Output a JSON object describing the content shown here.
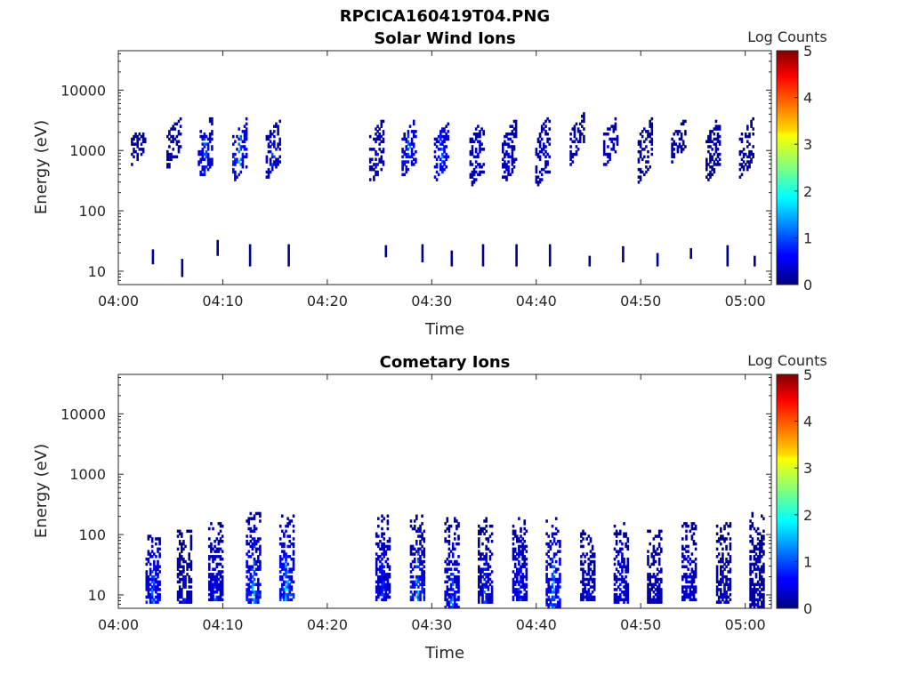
{
  "figure_title": "RPCICA160419T04.PNG",
  "chart_data": [
    {
      "type": "heatmap",
      "title": "Solar Wind Ions",
      "xlabel": "Time",
      "ylabel": "Energy (eV)",
      "x_ticks": [
        "04:00",
        "04:10",
        "04:20",
        "04:30",
        "04:40",
        "04:50",
        "05:00"
      ],
      "x_range_minutes": [
        0,
        62.5
      ],
      "y_scale": "log",
      "y_ticks": [
        "10",
        "100",
        "1000",
        "10000"
      ],
      "y_range": [
        6,
        45000
      ],
      "colorbar": {
        "label": "Log Counts",
        "ticks": [
          "0",
          "1",
          "2",
          "3",
          "4",
          "5"
        ],
        "range": [
          0,
          5
        ],
        "colormap": "jet"
      },
      "clusters": [
        {
          "t": 1.8,
          "e_min": 700,
          "e_max": 2200,
          "c": 0.4
        },
        {
          "t": 5.2,
          "e_min": 650,
          "e_max": 2800,
          "c": 0.5
        },
        {
          "t": 8.2,
          "e_min": 400,
          "e_max": 2700,
          "c": 1.4
        },
        {
          "t": 11.5,
          "e_min": 380,
          "e_max": 2600,
          "c": 1.7
        },
        {
          "t": 14.7,
          "e_min": 450,
          "e_max": 2500,
          "c": 1.2
        },
        {
          "t": 24.6,
          "e_min": 380,
          "e_max": 2600,
          "c": 0.8
        },
        {
          "t": 27.7,
          "e_min": 450,
          "e_max": 2600,
          "c": 1.5
        },
        {
          "t": 30.8,
          "e_min": 400,
          "e_max": 2300,
          "c": 1.4
        },
        {
          "t": 34.2,
          "e_min": 320,
          "e_max": 2600,
          "c": 0.6
        },
        {
          "t": 37.3,
          "e_min": 360,
          "e_max": 2500,
          "c": 0.6
        },
        {
          "t": 40.5,
          "e_min": 320,
          "e_max": 2700,
          "c": 0.5
        },
        {
          "t": 43.8,
          "e_min": 800,
          "e_max": 3000,
          "c": 0.5
        },
        {
          "t": 47.0,
          "e_min": 700,
          "e_max": 2800,
          "c": 0.6
        },
        {
          "t": 50.3,
          "e_min": 400,
          "e_max": 2600,
          "c": 0.5
        },
        {
          "t": 53.5,
          "e_min": 800,
          "e_max": 2500,
          "c": 0.4
        },
        {
          "t": 56.8,
          "e_min": 400,
          "e_max": 2800,
          "c": 0.5
        },
        {
          "t": 60.0,
          "e_min": 450,
          "e_max": 2600,
          "c": 0.5
        }
      ],
      "low_energy_bars": [
        {
          "t": 3.2,
          "e_min": 13,
          "e_max": 23
        },
        {
          "t": 6.0,
          "e_min": 8,
          "e_max": 16
        },
        {
          "t": 9.4,
          "e_min": 18,
          "e_max": 33
        },
        {
          "t": 12.5,
          "e_min": 12,
          "e_max": 28
        },
        {
          "t": 16.2,
          "e_min": 12,
          "e_max": 28
        },
        {
          "t": 25.5,
          "e_min": 17,
          "e_max": 27
        },
        {
          "t": 29.0,
          "e_min": 14,
          "e_max": 28
        },
        {
          "t": 31.8,
          "e_min": 12,
          "e_max": 22
        },
        {
          "t": 34.8,
          "e_min": 12,
          "e_max": 28
        },
        {
          "t": 38.0,
          "e_min": 12,
          "e_max": 28
        },
        {
          "t": 41.2,
          "e_min": 12,
          "e_max": 28
        },
        {
          "t": 45.0,
          "e_min": 12,
          "e_max": 18
        },
        {
          "t": 48.2,
          "e_min": 14,
          "e_max": 26
        },
        {
          "t": 51.5,
          "e_min": 12,
          "e_max": 20
        },
        {
          "t": 54.7,
          "e_min": 16,
          "e_max": 24
        },
        {
          "t": 58.2,
          "e_min": 12,
          "e_max": 27
        },
        {
          "t": 60.8,
          "e_min": 12,
          "e_max": 18
        }
      ]
    },
    {
      "type": "heatmap",
      "title": "Cometary Ions",
      "xlabel": "Time",
      "ylabel": "Energy (eV)",
      "x_ticks": [
        "04:00",
        "04:10",
        "04:20",
        "04:30",
        "04:40",
        "04:50",
        "05:00"
      ],
      "x_range_minutes": [
        0,
        62.5
      ],
      "y_scale": "log",
      "y_ticks": [
        "10",
        "100",
        "1000",
        "10000"
      ],
      "y_range": [
        6,
        45000
      ],
      "colorbar": {
        "label": "Log Counts",
        "ticks": [
          "0",
          "1",
          "2",
          "3",
          "4",
          "5"
        ],
        "range": [
          0,
          5
        ],
        "colormap": "jet"
      },
      "clusters": [
        {
          "t": 3.2,
          "e_min": 7,
          "e_max": 90,
          "c": 1.5
        },
        {
          "t": 6.2,
          "e_min": 7,
          "e_max": 110,
          "c": 0.8
        },
        {
          "t": 9.2,
          "e_min": 8,
          "e_max": 150,
          "c": 1.0
        },
        {
          "t": 12.8,
          "e_min": 7,
          "e_max": 250,
          "c": 1.8
        },
        {
          "t": 16.0,
          "e_min": 8,
          "e_max": 200,
          "c": 2.0
        },
        {
          "t": 25.2,
          "e_min": 8,
          "e_max": 200,
          "c": 1.0
        },
        {
          "t": 28.5,
          "e_min": 8,
          "e_max": 200,
          "c": 1.8
        },
        {
          "t": 31.8,
          "e_min": 6,
          "e_max": 180,
          "c": 1.4
        },
        {
          "t": 35.0,
          "e_min": 7,
          "e_max": 180,
          "c": 1.2
        },
        {
          "t": 38.3,
          "e_min": 8,
          "e_max": 180,
          "c": 1.0
        },
        {
          "t": 41.5,
          "e_min": 6,
          "e_max": 200,
          "c": 1.8
        },
        {
          "t": 44.8,
          "e_min": 8,
          "e_max": 120,
          "c": 0.7
        },
        {
          "t": 48.0,
          "e_min": 7,
          "e_max": 150,
          "c": 0.8
        },
        {
          "t": 51.2,
          "e_min": 7,
          "e_max": 120,
          "c": 0.6
        },
        {
          "t": 54.5,
          "e_min": 8,
          "e_max": 150,
          "c": 0.8
        },
        {
          "t": 57.8,
          "e_min": 7,
          "e_max": 150,
          "c": 0.7
        },
        {
          "t": 61.0,
          "e_min": 6,
          "e_max": 230,
          "c": 0.5
        }
      ]
    }
  ]
}
